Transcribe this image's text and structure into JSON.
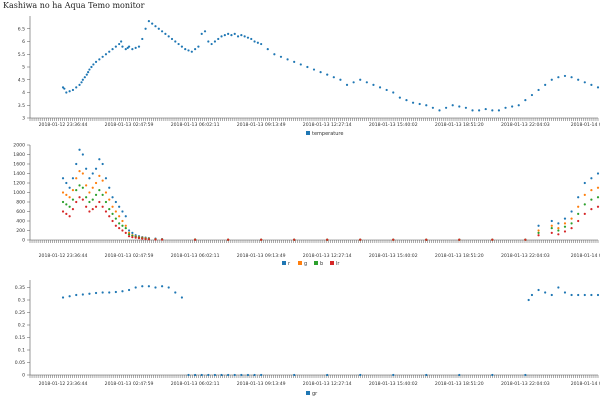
{
  "title": "Kashiwa no ha Aqua Temo monitor",
  "colors": {
    "blue": "#1f77b4",
    "orange": "#ff7f0e",
    "green": "#2ca02c",
    "red": "#d62728"
  },
  "x_ticks": [
    "2018-01-12 23:36:44",
    "2018-01-13 02:47:59",
    "2018-01-13 06:02:11",
    "2018-01-13 09:13:49",
    "2018-01-13 12:27:14",
    "2018-01-13 15:40:02",
    "2018-01-13 18:51:20",
    "2018-01-13 22:04:03",
    "2018-01-14 01:17"
  ],
  "chart_data": [
    {
      "type": "scatter",
      "x_ticks": [
        "2018-01-12 23:36:44",
        "2018-01-13 02:47:59",
        "2018-01-13 06:02:11",
        "2018-01-13 09:13:49",
        "2018-01-13 12:27:14",
        "2018-01-13 15:40:02",
        "2018-01-13 18:51:20",
        "2018-01-13 22:04:03",
        "2018-01-14 01:17"
      ],
      "ylim": [
        3,
        7
      ],
      "y_ticks": [
        "3",
        "3.5",
        "4",
        "4.5",
        "5",
        "5.5",
        "6",
        "6.5"
      ],
      "legend_position": "bottom-center",
      "series": [
        {
          "name": "temperature",
          "color": "#1f77b4",
          "x": [
            0,
            0.02,
            0.05,
            0.1,
            0.15,
            0.2,
            0.25,
            0.28,
            0.3,
            0.33,
            0.36,
            0.38,
            0.4,
            0.43,
            0.46,
            0.5,
            0.55,
            0.6,
            0.65,
            0.7,
            0.75,
            0.8,
            0.85,
            0.88,
            0.9,
            0.95,
            0.98,
            1.0,
            1.05,
            1.1,
            1.15,
            1.2,
            1.25,
            1.3,
            1.35,
            1.4,
            1.45,
            1.5,
            1.55,
            1.6,
            1.65,
            1.7,
            1.75,
            1.8,
            1.85,
            1.9,
            1.95,
            2.0,
            2.05,
            2.1,
            2.15,
            2.2,
            2.25,
            2.3,
            2.35,
            2.4,
            2.45,
            2.5,
            2.55,
            2.6,
            2.65,
            2.7,
            2.75,
            2.8,
            2.85,
            2.9,
            2.95,
            3.0,
            3.1,
            3.2,
            3.3,
            3.4,
            3.5,
            3.6,
            3.7,
            3.8,
            3.9,
            4.0,
            4.1,
            4.2,
            4.3,
            4.4,
            4.5,
            4.6,
            4.7,
            4.8,
            4.9,
            5.0,
            5.1,
            5.2,
            5.3,
            5.4,
            5.5,
            5.6,
            5.7,
            5.8,
            5.9,
            6.0,
            6.1,
            6.2,
            6.3,
            6.4,
            6.5,
            6.6,
            6.7,
            6.8,
            6.9,
            7.0,
            7.1,
            7.2,
            7.3,
            7.4,
            7.5,
            7.6,
            7.7,
            7.8,
            7.9,
            8.0,
            8.1,
            8.2,
            8.3
          ],
          "y": [
            4.2,
            4.15,
            4.0,
            4.05,
            4.1,
            4.2,
            4.3,
            4.4,
            4.5,
            4.6,
            4.7,
            4.8,
            4.9,
            5.0,
            5.1,
            5.2,
            5.3,
            5.4,
            5.5,
            5.6,
            5.7,
            5.8,
            5.9,
            6.0,
            5.8,
            5.7,
            5.75,
            5.8,
            5.7,
            5.75,
            5.8,
            6.1,
            6.5,
            6.8,
            6.7,
            6.6,
            6.5,
            6.4,
            6.3,
            6.2,
            6.1,
            6.0,
            5.9,
            5.8,
            5.7,
            5.65,
            5.6,
            5.7,
            5.8,
            6.3,
            6.4,
            6.0,
            5.9,
            6.0,
            6.1,
            6.2,
            6.25,
            6.3,
            6.25,
            6.3,
            6.2,
            6.25,
            6.2,
            6.15,
            6.1,
            6.0,
            5.95,
            5.9,
            5.7,
            5.5,
            5.4,
            5.3,
            5.2,
            5.1,
            5.0,
            4.9,
            4.8,
            4.7,
            4.6,
            4.5,
            4.3,
            4.4,
            4.5,
            4.4,
            4.3,
            4.2,
            4.1,
            4.0,
            3.8,
            3.7,
            3.6,
            3.55,
            3.5,
            3.4,
            3.3,
            3.4,
            3.5,
            3.45,
            3.4,
            3.3,
            3.3,
            3.35,
            3.3,
            3.3,
            3.4,
            3.45,
            3.5,
            3.7,
            3.9,
            4.1,
            4.3,
            4.5,
            4.6,
            4.65,
            4.6,
            4.5,
            4.4,
            4.3,
            4.2,
            4.0,
            3.8
          ]
        }
      ]
    },
    {
      "type": "scatter",
      "x_ticks": [
        "2018-01-12 23:36:44",
        "2018-01-13 02:47:59",
        "2018-01-13 06:02:11",
        "2018-01-13 09:13:49",
        "2018-01-13 12:27:14",
        "2018-01-13 15:40:02",
        "2018-01-13 18:51:20",
        "2018-01-13 22:04:03",
        "2018-01-14 01:17"
      ],
      "ylim": [
        0,
        2000
      ],
      "y_ticks": [
        "0",
        "200",
        "400",
        "600",
        "800",
        "1000",
        "1200",
        "1400",
        "1600",
        "1800",
        "2000"
      ],
      "legend_position": "bottom-center",
      "series": [
        {
          "name": "r",
          "color": "#1f77b4",
          "x": [
            0,
            0.05,
            0.1,
            0.15,
            0.2,
            0.25,
            0.3,
            0.35,
            0.4,
            0.45,
            0.5,
            0.55,
            0.6,
            0.65,
            0.7,
            0.75,
            0.8,
            0.85,
            0.9,
            0.95,
            1.0,
            1.05,
            1.1,
            1.15,
            1.2,
            1.25,
            1.3,
            1.4,
            1.5,
            2.0,
            2.5,
            3.0,
            3.5,
            4.0,
            4.5,
            5.0,
            5.5,
            6.0,
            6.5,
            7.0,
            7.2,
            7.4,
            7.5,
            7.6,
            7.7,
            7.8,
            7.9,
            8.0,
            8.1,
            8.2,
            8.3
          ],
          "y": [
            1300,
            1200,
            1100,
            1300,
            1600,
            1900,
            1800,
            1500,
            1300,
            1400,
            1500,
            1700,
            1600,
            1300,
            1100,
            900,
            800,
            700,
            600,
            500,
            200,
            150,
            100,
            80,
            60,
            50,
            40,
            30,
            20,
            10,
            5,
            5,
            5,
            5,
            5,
            5,
            5,
            5,
            5,
            5,
            300,
            400,
            350,
            450,
            600,
            900,
            1200,
            1300,
            1400,
            1500,
            1600
          ]
        },
        {
          "name": "g",
          "color": "#ff7f0e",
          "x": [
            0,
            0.05,
            0.1,
            0.15,
            0.2,
            0.25,
            0.3,
            0.35,
            0.4,
            0.45,
            0.5,
            0.55,
            0.6,
            0.65,
            0.7,
            0.75,
            0.8,
            0.85,
            0.9,
            0.95,
            1.0,
            1.05,
            1.1,
            1.15,
            1.2,
            1.25,
            1.3,
            1.4,
            1.5,
            2.0,
            2.5,
            3.0,
            3.5,
            4.0,
            4.5,
            5.0,
            5.5,
            6.0,
            6.5,
            7.0,
            7.2,
            7.4,
            7.5,
            7.6,
            7.7,
            7.8,
            7.9,
            8.0,
            8.1,
            8.2,
            8.3
          ],
          "y": [
            1000,
            950,
            900,
            1050,
            1300,
            1450,
            1400,
            1150,
            1000,
            1100,
            1200,
            1350,
            1250,
            1000,
            850,
            700,
            600,
            500,
            400,
            300,
            150,
            100,
            80,
            60,
            50,
            40,
            30,
            20,
            15,
            10,
            5,
            5,
            5,
            5,
            5,
            5,
            5,
            5,
            5,
            5,
            200,
            300,
            250,
            350,
            450,
            700,
            950,
            1050,
            1100,
            1150,
            1200
          ]
        },
        {
          "name": "b",
          "color": "#2ca02c",
          "x": [
            0,
            0.05,
            0.1,
            0.15,
            0.2,
            0.25,
            0.3,
            0.35,
            0.4,
            0.45,
            0.5,
            0.55,
            0.6,
            0.65,
            0.7,
            0.75,
            0.8,
            0.85,
            0.9,
            0.95,
            1.0,
            1.05,
            1.1,
            1.15,
            1.2,
            1.25,
            1.3,
            1.4,
            1.5,
            2.0,
            2.5,
            3.0,
            3.5,
            4.0,
            4.5,
            5.0,
            5.5,
            6.0,
            6.5,
            7.0,
            7.2,
            7.4,
            7.5,
            7.6,
            7.7,
            7.8,
            7.9,
            8.0,
            8.1,
            8.2,
            8.3
          ],
          "y": [
            800,
            750,
            700,
            850,
            1050,
            1150,
            1100,
            900,
            800,
            850,
            950,
            1050,
            950,
            800,
            650,
            550,
            450,
            350,
            300,
            250,
            120,
            90,
            70,
            50,
            40,
            30,
            20,
            15,
            10,
            8,
            5,
            5,
            5,
            5,
            5,
            5,
            5,
            5,
            5,
            5,
            150,
            250,
            200,
            280,
            350,
            550,
            750,
            850,
            900,
            950,
            1000
          ]
        },
        {
          "name": "lr",
          "color": "#d62728",
          "x": [
            0,
            0.05,
            0.1,
            0.15,
            0.2,
            0.25,
            0.3,
            0.35,
            0.4,
            0.45,
            0.5,
            0.55,
            0.6,
            0.65,
            0.7,
            0.75,
            0.8,
            0.85,
            0.9,
            0.95,
            1.0,
            1.05,
            1.1,
            1.15,
            1.2,
            1.25,
            1.3,
            1.4,
            1.5,
            2.0,
            2.5,
            3.0,
            3.5,
            4.0,
            4.5,
            5.0,
            5.5,
            6.0,
            6.5,
            7.0,
            7.2,
            7.4,
            7.5,
            7.6,
            7.7,
            7.8,
            7.9,
            8.0,
            8.1,
            8.2,
            8.3
          ],
          "y": [
            600,
            550,
            500,
            650,
            800,
            900,
            850,
            700,
            600,
            650,
            700,
            800,
            700,
            600,
            500,
            400,
            300,
            250,
            200,
            150,
            80,
            60,
            50,
            40,
            30,
            20,
            15,
            10,
            8,
            5,
            5,
            5,
            5,
            5,
            5,
            5,
            5,
            5,
            5,
            5,
            100,
            150,
            120,
            180,
            250,
            400,
            550,
            650,
            700,
            750,
            800
          ]
        }
      ]
    },
    {
      "type": "scatter",
      "x_ticks": [
        "2018-01-12 23:36:44",
        "2018-01-13 02:47:59",
        "2018-01-13 06:02:11",
        "2018-01-13 09:13:49",
        "2018-01-13 12:27:14",
        "2018-01-13 15:40:02",
        "2018-01-13 18:51:20",
        "2018-01-13 22:04:03",
        "2018-01-14 01:17"
      ],
      "ylim": [
        0,
        0.38
      ],
      "y_ticks": [
        "0",
        "0.05",
        "0.1",
        "0.15",
        "0.2",
        "0.25",
        "0.3",
        "0.35"
      ],
      "legend_position": "bottom-center",
      "series": [
        {
          "name": "gr",
          "color": "#1f77b4",
          "x": [
            0,
            0.1,
            0.2,
            0.3,
            0.4,
            0.5,
            0.6,
            0.7,
            0.8,
            0.9,
            1.0,
            1.1,
            1.2,
            1.3,
            1.4,
            1.5,
            1.6,
            1.7,
            1.8,
            1.9,
            2.0,
            2.1,
            2.2,
            2.3,
            2.4,
            2.5,
            2.6,
            2.7,
            2.8,
            2.9,
            3.0,
            3.5,
            4.0,
            4.5,
            5.0,
            5.5,
            6.0,
            6.5,
            7.0,
            7.05,
            7.1,
            7.2,
            7.3,
            7.4,
            7.5,
            7.6,
            7.7,
            7.8,
            7.9,
            8.0,
            8.1,
            8.2,
            8.3
          ],
          "y": [
            0.31,
            0.315,
            0.32,
            0.322,
            0.325,
            0.328,
            0.33,
            0.33,
            0.332,
            0.335,
            0.34,
            0.35,
            0.355,
            0.355,
            0.35,
            0.355,
            0.35,
            0.33,
            0.31,
            0,
            0,
            0,
            0,
            0,
            0,
            0,
            0,
            0,
            0,
            0,
            0,
            0,
            0,
            0,
            0,
            0,
            0,
            0,
            0,
            0.3,
            0.32,
            0.34,
            0.33,
            0.32,
            0.35,
            0.33,
            0.32,
            0.32,
            0.32,
            0.32,
            0.32,
            0.32,
            0.32
          ]
        }
      ]
    }
  ]
}
